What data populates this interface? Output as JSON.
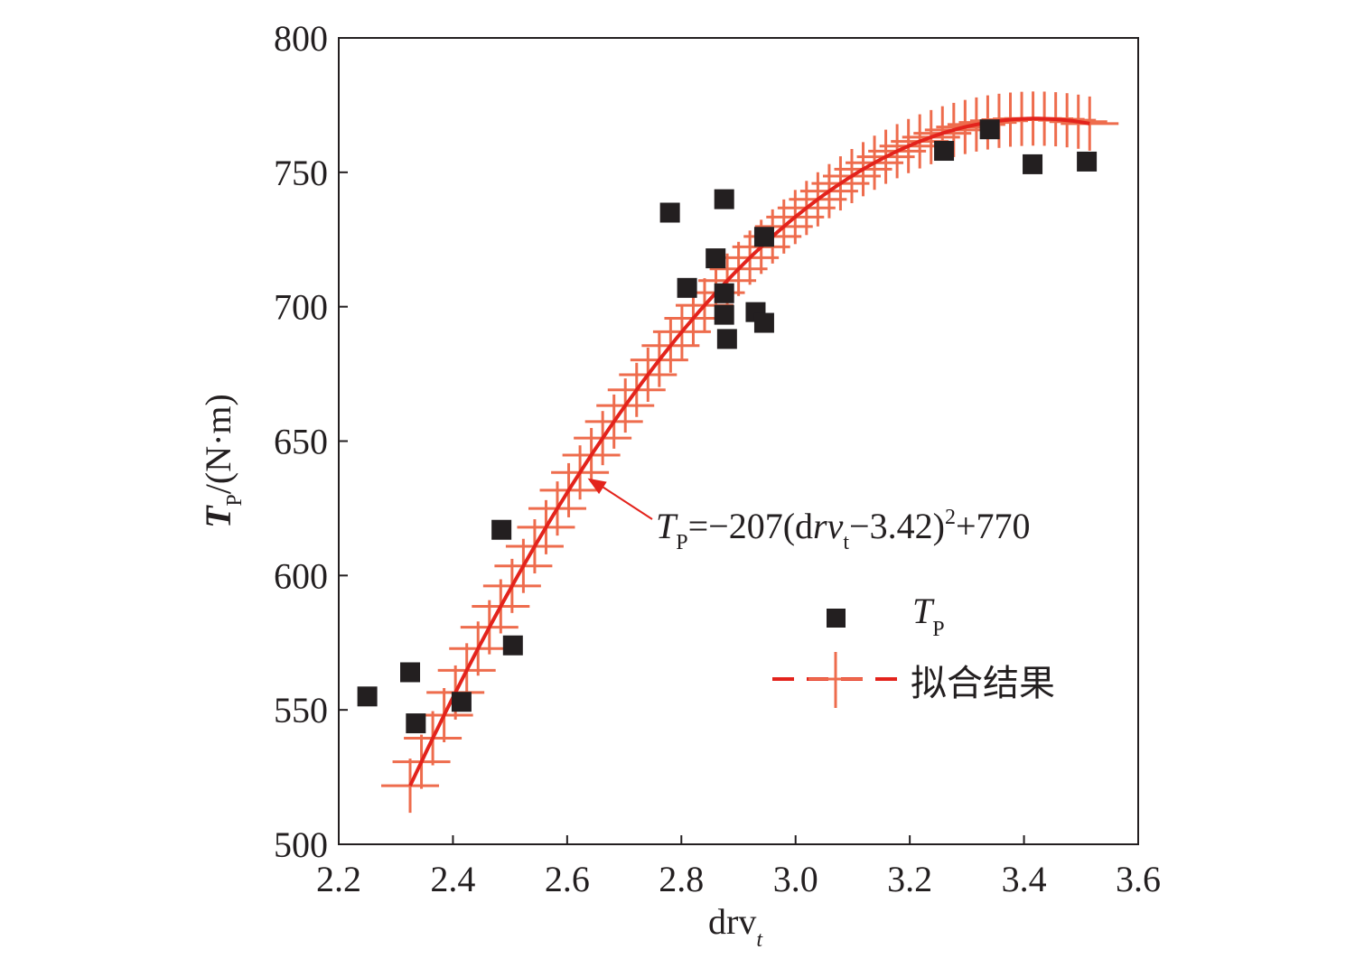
{
  "chart_data": {
    "type": "scatter",
    "xlabel": {
      "main": "drv",
      "sub": "t"
    },
    "ylabel": {
      "main": "T",
      "sub": "P",
      "unit": "/(N·m)"
    },
    "xlim": [
      2.2,
      3.6
    ],
    "ylim": [
      500,
      800
    ],
    "xticks": [
      "2.2",
      "2.4",
      "2.6",
      "2.8",
      "3.0",
      "3.2",
      "3.4",
      "3.6"
    ],
    "yticks": [
      "500",
      "550",
      "600",
      "650",
      "700",
      "750",
      "800"
    ],
    "series": [
      {
        "name": "T_P",
        "marker": "square",
        "color": "#231f20",
        "points": [
          [
            2.25,
            555
          ],
          [
            2.325,
            564
          ],
          [
            2.335,
            545
          ],
          [
            2.415,
            553
          ],
          [
            2.485,
            617
          ],
          [
            2.505,
            574
          ],
          [
            2.78,
            735
          ],
          [
            2.81,
            707
          ],
          [
            2.86,
            718
          ],
          [
            2.875,
            740
          ],
          [
            2.875,
            705
          ],
          [
            2.875,
            697
          ],
          [
            2.88,
            688
          ],
          [
            2.93,
            698
          ],
          [
            2.945,
            694
          ],
          [
            2.945,
            726
          ],
          [
            3.26,
            758
          ],
          [
            3.34,
            766
          ],
          [
            3.415,
            753
          ],
          [
            3.51,
            754
          ]
        ]
      },
      {
        "name": "拟合结果",
        "type": "fit",
        "equation": {
          "a": -207,
          "h": 3.42,
          "k": 770
        },
        "x_range": [
          2.325,
          3.515
        ],
        "line_color": "#e3231c",
        "marker_color": "#ee6c4d"
      }
    ],
    "legend": {
      "position": "bottom-right",
      "entries": [
        {
          "label_main": "T",
          "label_sub": "P",
          "marker": "square"
        },
        {
          "label": "拟合结果",
          "marker": "dashed-line-plus"
        }
      ]
    },
    "annotation": {
      "parts": [
        "T",
        "P",
        "=−207(d",
        "rv",
        "t",
        "−3.42)",
        "2",
        "+770"
      ],
      "points_to_x": 2.62
    },
    "colors": {
      "axis": "#231f20",
      "fit_line": "#e3231c",
      "fit_markers": "#ee6c4d",
      "arrow": "#e3231c"
    }
  }
}
